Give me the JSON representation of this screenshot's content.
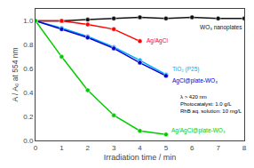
{
  "chart_data": {
    "type": "line",
    "xlabel": "Irradiation time / min",
    "ylabel": "A / A₀ at 554 nm",
    "xlim": [
      0,
      8
    ],
    "ylim": [
      0,
      1.1
    ],
    "xticks": [
      0,
      1,
      2,
      3,
      4,
      5,
      6,
      7,
      8
    ],
    "yticks": [
      {
        "value": 0,
        "label": "0.0"
      },
      0.2,
      0.4,
      0.6,
      0.8,
      {
        "value": 1,
        "label": "1.0"
      }
    ],
    "grid": false,
    "marker": "circle",
    "series": [
      {
        "name": "WO₃ nanoplates",
        "color": "#111111",
        "x": [
          0,
          1,
          2,
          3,
          4,
          5,
          6,
          7,
          8
        ],
        "values": [
          1.0,
          1.0,
          1.01,
          1.02,
          1.03,
          1.02,
          1.03,
          1.02,
          1.02
        ]
      },
      {
        "name": "TiO₂ (P25)",
        "color": "#00aaff",
        "x": [
          0,
          1,
          2,
          3,
          4,
          5
        ],
        "values": [
          1.0,
          0.94,
          0.87,
          0.78,
          0.67,
          0.55
        ]
      },
      {
        "name": "Ag/AgCl",
        "color": "#ff0000",
        "x": [
          0,
          1,
          2,
          3,
          4
        ],
        "values": [
          1.0,
          1.0,
          0.97,
          0.93,
          0.83
        ]
      },
      {
        "name": "AgCl@plate-WO₃",
        "color": "#0000cc",
        "x": [
          0,
          1,
          2,
          3,
          4,
          5
        ],
        "values": [
          1.0,
          0.93,
          0.86,
          0.77,
          0.65,
          0.54
        ]
      },
      {
        "name": "Ag/AgCl@plate-WO₃",
        "color": "#00cc00",
        "x": [
          0,
          1,
          2,
          3,
          4,
          5
        ],
        "values": [
          1.0,
          0.7,
          0.42,
          0.21,
          0.08,
          0.05
        ]
      }
    ],
    "annotations": [
      "λ > 420 nm",
      "Photocatalyst: 1.0 g/L",
      "RhB aq. solution: 10 mg/L"
    ]
  }
}
